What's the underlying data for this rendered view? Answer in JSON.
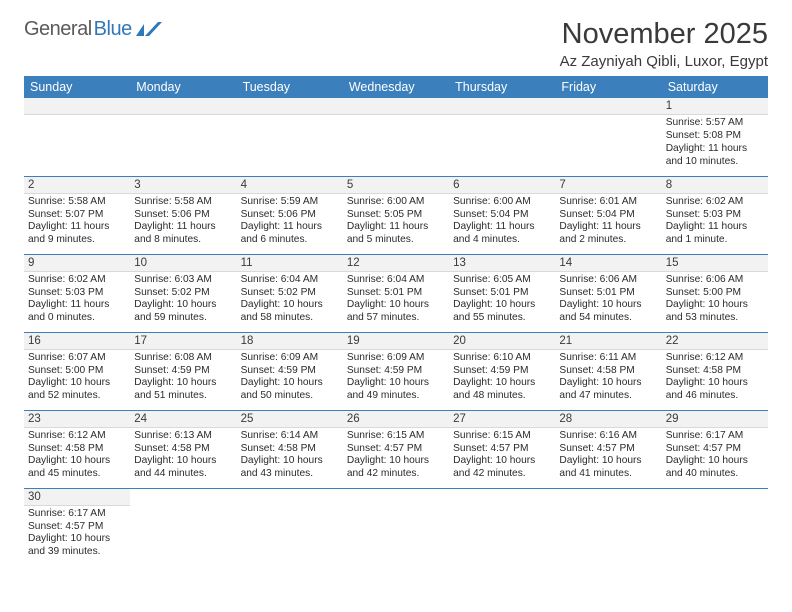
{
  "logo": {
    "text1": "General",
    "text2": "Blue"
  },
  "title": "November 2025",
  "location": "Az Zayniyah Qibli, Luxor, Egypt",
  "colors": {
    "header_bg": "#3b7fbc",
    "header_text": "#ffffff",
    "daynum_bg": "#f2f2f2",
    "border": "#3b7fbc",
    "logo_gray": "#5a5a5a",
    "logo_blue": "#2f78bb"
  },
  "weekdays": [
    "Sunday",
    "Monday",
    "Tuesday",
    "Wednesday",
    "Thursday",
    "Friday",
    "Saturday"
  ],
  "weeks": [
    [
      null,
      null,
      null,
      null,
      null,
      null,
      {
        "n": "1",
        "sr": "5:57 AM",
        "ss": "5:08 PM",
        "dl": "11 hours and 10 minutes."
      }
    ],
    [
      {
        "n": "2",
        "sr": "5:58 AM",
        "ss": "5:07 PM",
        "dl": "11 hours and 9 minutes."
      },
      {
        "n": "3",
        "sr": "5:58 AM",
        "ss": "5:06 PM",
        "dl": "11 hours and 8 minutes."
      },
      {
        "n": "4",
        "sr": "5:59 AM",
        "ss": "5:06 PM",
        "dl": "11 hours and 6 minutes."
      },
      {
        "n": "5",
        "sr": "6:00 AM",
        "ss": "5:05 PM",
        "dl": "11 hours and 5 minutes."
      },
      {
        "n": "6",
        "sr": "6:00 AM",
        "ss": "5:04 PM",
        "dl": "11 hours and 4 minutes."
      },
      {
        "n": "7",
        "sr": "6:01 AM",
        "ss": "5:04 PM",
        "dl": "11 hours and 2 minutes."
      },
      {
        "n": "8",
        "sr": "6:02 AM",
        "ss": "5:03 PM",
        "dl": "11 hours and 1 minute."
      }
    ],
    [
      {
        "n": "9",
        "sr": "6:02 AM",
        "ss": "5:03 PM",
        "dl": "11 hours and 0 minutes."
      },
      {
        "n": "10",
        "sr": "6:03 AM",
        "ss": "5:02 PM",
        "dl": "10 hours and 59 minutes."
      },
      {
        "n": "11",
        "sr": "6:04 AM",
        "ss": "5:02 PM",
        "dl": "10 hours and 58 minutes."
      },
      {
        "n": "12",
        "sr": "6:04 AM",
        "ss": "5:01 PM",
        "dl": "10 hours and 57 minutes."
      },
      {
        "n": "13",
        "sr": "6:05 AM",
        "ss": "5:01 PM",
        "dl": "10 hours and 55 minutes."
      },
      {
        "n": "14",
        "sr": "6:06 AM",
        "ss": "5:01 PM",
        "dl": "10 hours and 54 minutes."
      },
      {
        "n": "15",
        "sr": "6:06 AM",
        "ss": "5:00 PM",
        "dl": "10 hours and 53 minutes."
      }
    ],
    [
      {
        "n": "16",
        "sr": "6:07 AM",
        "ss": "5:00 PM",
        "dl": "10 hours and 52 minutes."
      },
      {
        "n": "17",
        "sr": "6:08 AM",
        "ss": "4:59 PM",
        "dl": "10 hours and 51 minutes."
      },
      {
        "n": "18",
        "sr": "6:09 AM",
        "ss": "4:59 PM",
        "dl": "10 hours and 50 minutes."
      },
      {
        "n": "19",
        "sr": "6:09 AM",
        "ss": "4:59 PM",
        "dl": "10 hours and 49 minutes."
      },
      {
        "n": "20",
        "sr": "6:10 AM",
        "ss": "4:59 PM",
        "dl": "10 hours and 48 minutes."
      },
      {
        "n": "21",
        "sr": "6:11 AM",
        "ss": "4:58 PM",
        "dl": "10 hours and 47 minutes."
      },
      {
        "n": "22",
        "sr": "6:12 AM",
        "ss": "4:58 PM",
        "dl": "10 hours and 46 minutes."
      }
    ],
    [
      {
        "n": "23",
        "sr": "6:12 AM",
        "ss": "4:58 PM",
        "dl": "10 hours and 45 minutes."
      },
      {
        "n": "24",
        "sr": "6:13 AM",
        "ss": "4:58 PM",
        "dl": "10 hours and 44 minutes."
      },
      {
        "n": "25",
        "sr": "6:14 AM",
        "ss": "4:58 PM",
        "dl": "10 hours and 43 minutes."
      },
      {
        "n": "26",
        "sr": "6:15 AM",
        "ss": "4:57 PM",
        "dl": "10 hours and 42 minutes."
      },
      {
        "n": "27",
        "sr": "6:15 AM",
        "ss": "4:57 PM",
        "dl": "10 hours and 42 minutes."
      },
      {
        "n": "28",
        "sr": "6:16 AM",
        "ss": "4:57 PM",
        "dl": "10 hours and 41 minutes."
      },
      {
        "n": "29",
        "sr": "6:17 AM",
        "ss": "4:57 PM",
        "dl": "10 hours and 40 minutes."
      }
    ],
    [
      {
        "n": "30",
        "sr": "6:17 AM",
        "ss": "4:57 PM",
        "dl": "10 hours and 39 minutes."
      },
      null,
      null,
      null,
      null,
      null,
      null
    ]
  ],
  "labels": {
    "sunrise": "Sunrise: ",
    "sunset": "Sunset: ",
    "daylight": "Daylight: "
  }
}
